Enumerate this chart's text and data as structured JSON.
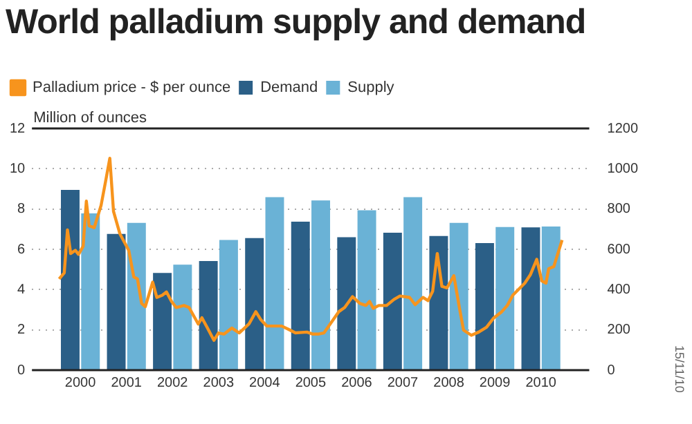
{
  "chart_data": {
    "type": "bar",
    "title": "World palladium supply and demand",
    "ylabel": "Million of ounces",
    "x": [
      2000.5,
      2001.5,
      2002.5,
      2003.5,
      2004.5,
      2005.5,
      2006.5,
      2007.5,
      2008.5,
      2009.5,
      2010.5
    ],
    "xlim": [
      2000,
      2011
    ],
    "xticks": [
      {
        "value": 2000.5,
        "label": "2000"
      },
      {
        "value": 2001.5,
        "label": "2001"
      },
      {
        "value": 2002.5,
        "label": "2002"
      },
      {
        "value": 2003.5,
        "label": "2003"
      },
      {
        "value": 2004.5,
        "label": "2004"
      },
      {
        "value": 2005.5,
        "label": "2005"
      },
      {
        "value": 2006.5,
        "label": "2006"
      },
      {
        "value": 2007.5,
        "label": "2007"
      },
      {
        "value": 2008.5,
        "label": "2008"
      },
      {
        "value": 2009.5,
        "label": "2009"
      },
      {
        "value": 2010.5,
        "label": "2010"
      }
    ],
    "series": [
      {
        "name": "Demand",
        "color": "#2b5f87",
        "values": [
          8.95,
          6.76,
          4.83,
          5.42,
          6.56,
          7.37,
          6.6,
          6.82,
          6.66,
          6.31,
          7.09
        ]
      },
      {
        "name": "Supply",
        "color": "#6ab2d6",
        "values": [
          7.78,
          7.31,
          5.24,
          6.46,
          8.59,
          8.43,
          7.94,
          8.59,
          7.31,
          7.11,
          7.13
        ]
      },
      {
        "name": "Palladium price - $ per ounce",
        "type": "line",
        "axis": "y2",
        "color": "#f7941d",
        "x": [
          2000.04,
          2000.15,
          2000.22,
          2000.29,
          2000.39,
          2000.46,
          2000.56,
          2000.63,
          2000.69,
          2000.8,
          2000.95,
          2001.05,
          2001.14,
          2001.22,
          2001.36,
          2001.55,
          2001.66,
          2001.74,
          2001.83,
          2001.91,
          2002.07,
          2002.16,
          2002.28,
          2002.37,
          2002.48,
          2002.58,
          2002.75,
          2002.86,
          2003.06,
          2003.14,
          2003.26,
          2003.4,
          2003.5,
          2003.62,
          2003.79,
          2003.95,
          2004.16,
          2004.31,
          2004.42,
          2004.55,
          2004.76,
          2004.87,
          2005.0,
          2005.17,
          2005.42,
          2005.55,
          2005.66,
          2005.79,
          2005.99,
          2006.11,
          2006.24,
          2006.41,
          2006.57,
          2006.7,
          2006.78,
          2006.86,
          2006.98,
          2007.15,
          2007.31,
          2007.44,
          2007.65,
          2007.77,
          2007.94,
          2008.05,
          2008.15,
          2008.25,
          2008.35,
          2008.46,
          2008.61,
          2008.73,
          2008.82,
          2008.99,
          2009.15,
          2009.32,
          2009.48,
          2009.65,
          2009.77,
          2009.89,
          2010.15,
          2010.27,
          2010.41,
          2010.52,
          2010.61,
          2010.67,
          2010.78,
          2010.96
        ],
        "values": [
          453,
          483,
          696,
          579,
          595,
          575,
          615,
          839,
          717,
          707,
          818,
          940,
          1052,
          788,
          676,
          595,
          463,
          453,
          331,
          315,
          437,
          361,
          372,
          388,
          341,
          311,
          321,
          311,
          229,
          260,
          209,
          148,
          185,
          179,
          209,
          185,
          229,
          290,
          250,
          219,
          219,
          219,
          205,
          185,
          189,
          179,
          179,
          185,
          250,
          290,
          311,
          365,
          331,
          321,
          341,
          307,
          321,
          321,
          351,
          368,
          361,
          325,
          361,
          345,
          392,
          579,
          416,
          408,
          469,
          311,
          199,
          173,
          189,
          213,
          260,
          290,
          321,
          372,
          432,
          473,
          550,
          443,
          432,
          504,
          514,
          646
        ]
      }
    ],
    "ylim": [
      0,
      12
    ],
    "yticks": [
      0,
      2,
      4,
      6,
      8,
      10,
      12
    ],
    "y2lim": [
      0,
      1200
    ],
    "y2ticks": [
      0,
      200,
      400,
      600,
      800,
      1000,
      1200
    ],
    "grid": "y",
    "legend": "top",
    "marker": "none",
    "line_style": "solid",
    "annotations": [
      "15/11/10"
    ]
  }
}
